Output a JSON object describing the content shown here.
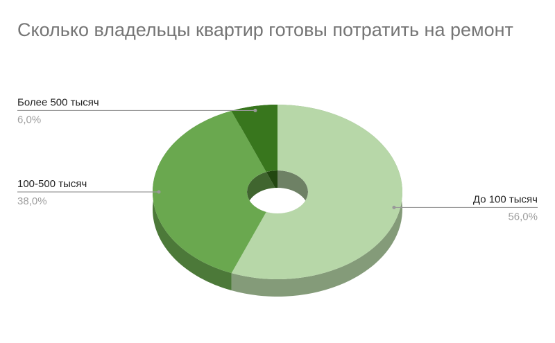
{
  "chart_data": {
    "type": "donut",
    "title": "Сколько владельцы квартир готовы потратить на ремонт",
    "categories": [
      "До 100 тысяч",
      "100-500 тысяч",
      "Более 500 тысяч"
    ],
    "values": [
      56,
      38,
      6
    ],
    "value_labels": [
      "56,0%",
      "38,0%",
      "6,0%"
    ],
    "colors": [
      "#b7d7a8",
      "#6aa84f",
      "#38761d"
    ]
  }
}
